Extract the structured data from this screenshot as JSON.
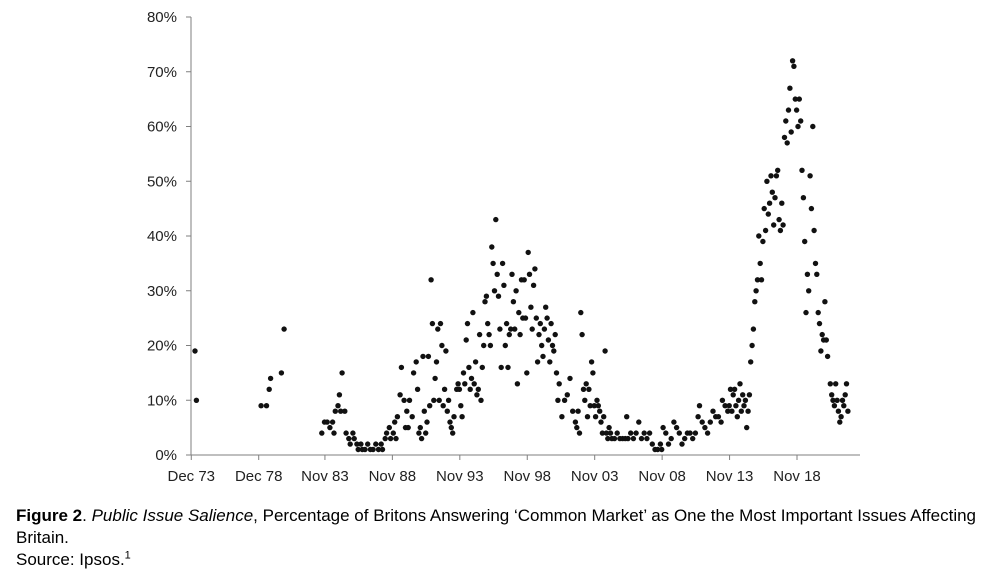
{
  "chart_data": {
    "type": "scatter",
    "title": "",
    "xlabel": "",
    "ylabel": "",
    "ylim": [
      0,
      80
    ],
    "yticks": [
      "0%",
      "10%",
      "20%",
      "30%",
      "40%",
      "50%",
      "60%",
      "70%",
      "80%"
    ],
    "xlim": [
      1973.9,
      2023.5
    ],
    "xticks": [
      {
        "label": "Dec 73",
        "x": 1973.92
      },
      {
        "label": "Dec 78",
        "x": 1978.92
      },
      {
        "label": "Nov 83",
        "x": 1983.83
      },
      {
        "label": "Nov 88",
        "x": 1988.83
      },
      {
        "label": "Nov 93",
        "x": 1993.83
      },
      {
        "label": "Nov 98",
        "x": 1998.83
      },
      {
        "label": "Nov 03",
        "x": 2003.83
      },
      {
        "label": "Nov 08",
        "x": 2008.83
      },
      {
        "label": "Nov 13",
        "x": 2013.83
      },
      {
        "label": "Nov 18",
        "x": 2018.83
      }
    ],
    "grid": false,
    "legend": "none",
    "marker_color": "#111111",
    "points": [
      [
        1974.2,
        19
      ],
      [
        1974.3,
        10
      ],
      [
        1979.1,
        9
      ],
      [
        1979.5,
        9
      ],
      [
        1979.7,
        12
      ],
      [
        1979.8,
        14
      ],
      [
        1980.6,
        15
      ],
      [
        1980.8,
        23
      ],
      [
        1983.6,
        4
      ],
      [
        1983.8,
        6
      ],
      [
        1984.0,
        6
      ],
      [
        1984.2,
        5
      ],
      [
        1984.4,
        6
      ],
      [
        1984.5,
        4
      ],
      [
        1984.6,
        8
      ],
      [
        1984.8,
        9
      ],
      [
        1984.9,
        11
      ],
      [
        1985.0,
        8
      ],
      [
        1985.1,
        15
      ],
      [
        1985.3,
        8
      ],
      [
        1985.4,
        4
      ],
      [
        1985.6,
        3
      ],
      [
        1985.7,
        2
      ],
      [
        1985.9,
        4
      ],
      [
        1986.0,
        3
      ],
      [
        1986.2,
        2
      ],
      [
        1986.3,
        1
      ],
      [
        1986.5,
        2
      ],
      [
        1986.6,
        1
      ],
      [
        1986.8,
        1
      ],
      [
        1987.0,
        2
      ],
      [
        1987.2,
        1
      ],
      [
        1987.4,
        1
      ],
      [
        1987.6,
        2
      ],
      [
        1987.8,
        1
      ],
      [
        1988.0,
        2
      ],
      [
        1988.1,
        1
      ],
      [
        1988.3,
        3
      ],
      [
        1988.4,
        4
      ],
      [
        1988.6,
        5
      ],
      [
        1988.7,
        3
      ],
      [
        1988.9,
        4
      ],
      [
        1989.0,
        6
      ],
      [
        1989.1,
        3
      ],
      [
        1989.2,
        7
      ],
      [
        1989.4,
        11
      ],
      [
        1989.5,
        16
      ],
      [
        1989.7,
        10
      ],
      [
        1989.8,
        5
      ],
      [
        1989.9,
        8
      ],
      [
        1990.0,
        5
      ],
      [
        1990.1,
        10
      ],
      [
        1990.3,
        7
      ],
      [
        1990.4,
        15
      ],
      [
        1990.6,
        17
      ],
      [
        1990.7,
        12
      ],
      [
        1990.8,
        4
      ],
      [
        1990.9,
        5
      ],
      [
        1991.0,
        3
      ],
      [
        1991.1,
        18
      ],
      [
        1991.2,
        8
      ],
      [
        1991.3,
        4
      ],
      [
        1991.4,
        6
      ],
      [
        1991.5,
        18
      ],
      [
        1991.6,
        9
      ],
      [
        1991.7,
        32
      ],
      [
        1991.8,
        24
      ],
      [
        1991.9,
        10
      ],
      [
        1992.0,
        14
      ],
      [
        1992.1,
        17
      ],
      [
        1992.2,
        23
      ],
      [
        1992.3,
        10
      ],
      [
        1992.4,
        24
      ],
      [
        1992.5,
        20
      ],
      [
        1992.6,
        9
      ],
      [
        1992.7,
        12
      ],
      [
        1992.8,
        19
      ],
      [
        1992.9,
        8
      ],
      [
        1993.0,
        10
      ],
      [
        1993.1,
        6
      ],
      [
        1993.2,
        5
      ],
      [
        1993.3,
        4
      ],
      [
        1993.4,
        7
      ],
      [
        1993.6,
        12
      ],
      [
        1993.7,
        13
      ],
      [
        1993.8,
        12
      ],
      [
        1993.9,
        9
      ],
      [
        1994.0,
        7
      ],
      [
        1994.1,
        15
      ],
      [
        1994.2,
        13
      ],
      [
        1994.3,
        21
      ],
      [
        1994.4,
        24
      ],
      [
        1994.5,
        16
      ],
      [
        1994.6,
        12
      ],
      [
        1994.7,
        14
      ],
      [
        1994.8,
        26
      ],
      [
        1994.9,
        13
      ],
      [
        1995.0,
        17
      ],
      [
        1995.1,
        11
      ],
      [
        1995.2,
        12
      ],
      [
        1995.3,
        22
      ],
      [
        1995.4,
        10
      ],
      [
        1995.5,
        16
      ],
      [
        1995.6,
        20
      ],
      [
        1995.7,
        28
      ],
      [
        1995.8,
        29
      ],
      [
        1995.9,
        24
      ],
      [
        1996.0,
        22
      ],
      [
        1996.1,
        20
      ],
      [
        1996.2,
        38
      ],
      [
        1996.3,
        35
      ],
      [
        1996.4,
        30
      ],
      [
        1996.5,
        43
      ],
      [
        1996.6,
        33
      ],
      [
        1996.7,
        29
      ],
      [
        1996.8,
        23
      ],
      [
        1996.9,
        16
      ],
      [
        1997.0,
        35
      ],
      [
        1997.1,
        31
      ],
      [
        1997.2,
        20
      ],
      [
        1997.3,
        24
      ],
      [
        1997.4,
        16
      ],
      [
        1997.5,
        22
      ],
      [
        1997.6,
        23
      ],
      [
        1997.7,
        33
      ],
      [
        1997.8,
        28
      ],
      [
        1997.9,
        23
      ],
      [
        1998.0,
        30
      ],
      [
        1998.1,
        13
      ],
      [
        1998.2,
        26
      ],
      [
        1998.3,
        22
      ],
      [
        1998.4,
        32
      ],
      [
        1998.5,
        25
      ],
      [
        1998.6,
        32
      ],
      [
        1998.7,
        25
      ],
      [
        1998.8,
        15
      ],
      [
        1998.9,
        37
      ],
      [
        1999.0,
        33
      ],
      [
        1999.1,
        27
      ],
      [
        1999.2,
        23
      ],
      [
        1999.3,
        31
      ],
      [
        1999.4,
        34
      ],
      [
        1999.5,
        25
      ],
      [
        1999.6,
        17
      ],
      [
        1999.7,
        22
      ],
      [
        1999.8,
        24
      ],
      [
        1999.9,
        20
      ],
      [
        2000.0,
        18
      ],
      [
        2000.1,
        23
      ],
      [
        2000.2,
        27
      ],
      [
        2000.3,
        25
      ],
      [
        2000.4,
        21
      ],
      [
        2000.5,
        17
      ],
      [
        2000.6,
        24
      ],
      [
        2000.7,
        20
      ],
      [
        2000.8,
        19
      ],
      [
        2000.9,
        22
      ],
      [
        2001.0,
        15
      ],
      [
        2001.1,
        10
      ],
      [
        2001.2,
        13
      ],
      [
        2001.4,
        7
      ],
      [
        2001.6,
        10
      ],
      [
        2001.8,
        11
      ],
      [
        2002.0,
        14
      ],
      [
        2002.2,
        8
      ],
      [
        2002.4,
        6
      ],
      [
        2002.5,
        5
      ],
      [
        2002.6,
        8
      ],
      [
        2002.7,
        4
      ],
      [
        2002.8,
        26
      ],
      [
        2002.9,
        22
      ],
      [
        2003.0,
        12
      ],
      [
        2003.1,
        10
      ],
      [
        2003.2,
        13
      ],
      [
        2003.3,
        7
      ],
      [
        2003.4,
        12
      ],
      [
        2003.5,
        9
      ],
      [
        2003.6,
        17
      ],
      [
        2003.7,
        15
      ],
      [
        2003.8,
        9
      ],
      [
        2003.9,
        7
      ],
      [
        2004.0,
        10
      ],
      [
        2004.1,
        9
      ],
      [
        2004.2,
        8
      ],
      [
        2004.3,
        6
      ],
      [
        2004.4,
        4
      ],
      [
        2004.5,
        7
      ],
      [
        2004.6,
        19
      ],
      [
        2004.7,
        4
      ],
      [
        2004.8,
        3
      ],
      [
        2004.9,
        5
      ],
      [
        2005.0,
        4
      ],
      [
        2005.1,
        3
      ],
      [
        2005.3,
        3
      ],
      [
        2005.5,
        4
      ],
      [
        2005.7,
        3
      ],
      [
        2005.9,
        3
      ],
      [
        2006.1,
        3
      ],
      [
        2006.2,
        7
      ],
      [
        2006.3,
        3
      ],
      [
        2006.5,
        4
      ],
      [
        2006.7,
        3
      ],
      [
        2006.9,
        4
      ],
      [
        2007.1,
        6
      ],
      [
        2007.3,
        3
      ],
      [
        2007.5,
        4
      ],
      [
        2007.7,
        3
      ],
      [
        2007.9,
        4
      ],
      [
        2008.1,
        2
      ],
      [
        2008.3,
        1
      ],
      [
        2008.5,
        1
      ],
      [
        2008.7,
        2
      ],
      [
        2008.8,
        1
      ],
      [
        2008.9,
        5
      ],
      [
        2009.1,
        4
      ],
      [
        2009.3,
        2
      ],
      [
        2009.5,
        3
      ],
      [
        2009.7,
        6
      ],
      [
        2009.9,
        5
      ],
      [
        2010.1,
        4
      ],
      [
        2010.3,
        2
      ],
      [
        2010.5,
        3
      ],
      [
        2010.7,
        4
      ],
      [
        2010.9,
        4
      ],
      [
        2011.1,
        3
      ],
      [
        2011.3,
        4
      ],
      [
        2011.5,
        7
      ],
      [
        2011.6,
        9
      ],
      [
        2011.8,
        6
      ],
      [
        2012.0,
        5
      ],
      [
        2012.2,
        4
      ],
      [
        2012.4,
        6
      ],
      [
        2012.6,
        8
      ],
      [
        2012.8,
        7
      ],
      [
        2013.0,
        7
      ],
      [
        2013.2,
        6
      ],
      [
        2013.3,
        10
      ],
      [
        2013.5,
        9
      ],
      [
        2013.7,
        8
      ],
      [
        2013.8,
        9
      ],
      [
        2013.9,
        12
      ],
      [
        2014.0,
        8
      ],
      [
        2014.1,
        11
      ],
      [
        2014.2,
        12
      ],
      [
        2014.3,
        9
      ],
      [
        2014.4,
        7
      ],
      [
        2014.5,
        10
      ],
      [
        2014.6,
        13
      ],
      [
        2014.7,
        8
      ],
      [
        2014.8,
        11
      ],
      [
        2014.9,
        9
      ],
      [
        2015.0,
        10
      ],
      [
        2015.1,
        5
      ],
      [
        2015.2,
        8
      ],
      [
        2015.3,
        11
      ],
      [
        2015.4,
        17
      ],
      [
        2015.5,
        20
      ],
      [
        2015.6,
        23
      ],
      [
        2015.7,
        28
      ],
      [
        2015.8,
        30
      ],
      [
        2015.9,
        32
      ],
      [
        2016.0,
        40
      ],
      [
        2016.1,
        35
      ],
      [
        2016.2,
        32
      ],
      [
        2016.3,
        39
      ],
      [
        2016.4,
        45
      ],
      [
        2016.5,
        41
      ],
      [
        2016.6,
        50
      ],
      [
        2016.7,
        44
      ],
      [
        2016.8,
        46
      ],
      [
        2016.9,
        51
      ],
      [
        2017.0,
        48
      ],
      [
        2017.1,
        42
      ],
      [
        2017.2,
        47
      ],
      [
        2017.3,
        51
      ],
      [
        2017.4,
        52
      ],
      [
        2017.5,
        43
      ],
      [
        2017.6,
        41
      ],
      [
        2017.7,
        46
      ],
      [
        2017.8,
        42
      ],
      [
        2017.9,
        58
      ],
      [
        2018.0,
        61
      ],
      [
        2018.1,
        57
      ],
      [
        2018.2,
        63
      ],
      [
        2018.3,
        67
      ],
      [
        2018.4,
        59
      ],
      [
        2018.5,
        72
      ],
      [
        2018.6,
        71
      ],
      [
        2018.7,
        65
      ],
      [
        2018.8,
        63
      ],
      [
        2018.9,
        60
      ],
      [
        2019.0,
        65
      ],
      [
        2019.1,
        61
      ],
      [
        2019.2,
        52
      ],
      [
        2019.3,
        47
      ],
      [
        2019.4,
        39
      ],
      [
        2019.5,
        26
      ],
      [
        2019.6,
        33
      ],
      [
        2019.7,
        30
      ],
      [
        2019.8,
        51
      ],
      [
        2019.9,
        45
      ],
      [
        2020.0,
        60
      ],
      [
        2020.1,
        41
      ],
      [
        2020.2,
        35
      ],
      [
        2020.3,
        33
      ],
      [
        2020.4,
        26
      ],
      [
        2020.5,
        24
      ],
      [
        2020.6,
        19
      ],
      [
        2020.7,
        22
      ],
      [
        2020.8,
        21
      ],
      [
        2020.9,
        28
      ],
      [
        2021.0,
        21
      ],
      [
        2021.1,
        18
      ],
      [
        2021.3,
        13
      ],
      [
        2021.4,
        11
      ],
      [
        2021.5,
        10
      ],
      [
        2021.6,
        9
      ],
      [
        2021.7,
        13
      ],
      [
        2021.8,
        10
      ],
      [
        2021.9,
        8
      ],
      [
        2022.0,
        6
      ],
      [
        2022.1,
        7
      ],
      [
        2022.2,
        10
      ],
      [
        2022.3,
        9
      ],
      [
        2022.4,
        11
      ],
      [
        2022.5,
        13
      ],
      [
        2022.6,
        8
      ]
    ]
  },
  "caption": {
    "figure_label": "Figure 2",
    "sep1": ". ",
    "title_italic": "Public Issue Salience",
    "text": ", Percentage of Britons Answering ‘Common Market’ as One the Most Important Issues Affecting Britain.",
    "source": "Source: Ipsos.",
    "footnote": "1"
  }
}
